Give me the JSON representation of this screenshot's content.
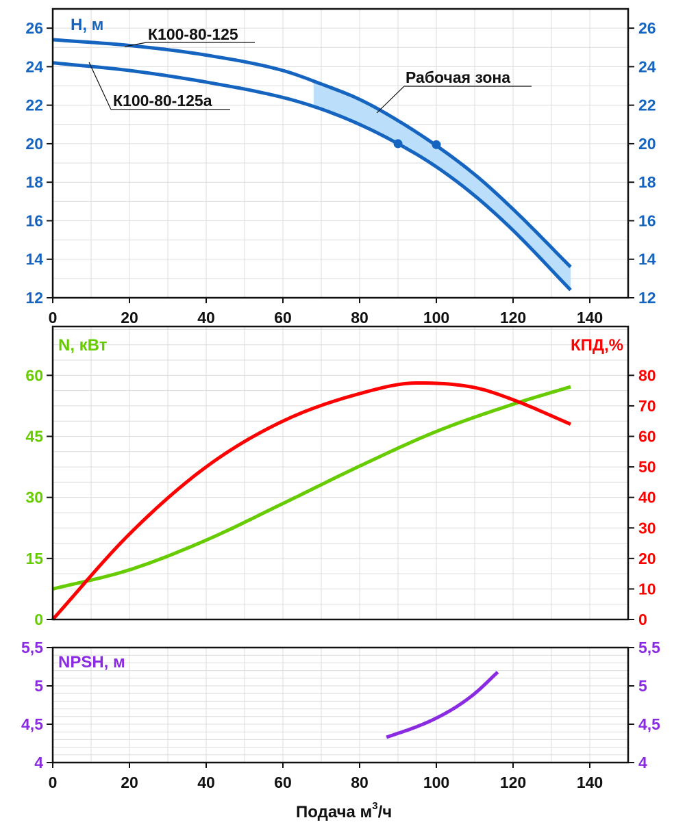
{
  "chart_data": [
    {
      "type": "line",
      "panel": "head",
      "ylabel": "H, м",
      "xlim": [
        0,
        150
      ],
      "ylim": [
        12,
        27
      ],
      "x_ticks": [
        0,
        20,
        40,
        60,
        80,
        100,
        120,
        140
      ],
      "y_ticks": [
        12,
        14,
        16,
        18,
        20,
        22,
        24,
        26
      ],
      "grid": true,
      "axis_color": "#1565c0",
      "series": [
        {
          "name": "К100-80-125",
          "color": "#1565c0",
          "x": [
            0,
            20,
            40,
            60,
            70,
            80,
            90,
            100,
            110,
            120,
            135
          ],
          "y": [
            25.4,
            25.1,
            24.6,
            23.8,
            23.1,
            22.3,
            21.2,
            19.9,
            18.4,
            16.6,
            13.6
          ]
        },
        {
          "name": "К100-80-125а",
          "color": "#1565c0",
          "x": [
            0,
            20,
            40,
            60,
            70,
            80,
            90,
            100,
            110,
            120,
            135
          ],
          "y": [
            24.2,
            23.8,
            23.2,
            22.4,
            21.8,
            21.0,
            20.0,
            18.8,
            17.3,
            15.5,
            12.4
          ]
        }
      ],
      "work_zone": {
        "label": "Рабочая зона",
        "x_range": [
          68,
          135
        ],
        "color": "#bbdefb"
      },
      "points": [
        {
          "series": "К100-80-125",
          "x": 100,
          "y": 19.95
        },
        {
          "series": "К100-80-125а",
          "x": 90,
          "y": 20.0
        }
      ],
      "annotations": [
        "К100-80-125",
        "К100-80-125а",
        "Рабочая зона"
      ]
    },
    {
      "type": "line",
      "panel": "power_efficiency",
      "xlim": [
        0,
        150
      ],
      "y_left": {
        "label": "N, кВт",
        "range": [
          0,
          72
        ],
        "ticks": [
          0,
          15,
          30,
          45,
          60
        ],
        "color": "#66cc00"
      },
      "y_right": {
        "label": "КПД,%",
        "range": [
          0,
          96
        ],
        "ticks": [
          0,
          10,
          20,
          30,
          40,
          50,
          60,
          70,
          80
        ],
        "color": "#ff0000"
      },
      "grid": true,
      "series": [
        {
          "name": "N",
          "axis": "left",
          "color": "#66cc00",
          "x": [
            0,
            20,
            40,
            60,
            80,
            100,
            120,
            135
          ],
          "y": [
            7.5,
            12.2,
            19.5,
            28.5,
            37.7,
            46.2,
            52.9,
            57.2
          ]
        },
        {
          "name": "КПД",
          "axis": "right",
          "color": "#ff0000",
          "x": [
            0,
            20,
            40,
            60,
            80,
            95,
            110,
            120,
            135
          ],
          "y": [
            0,
            28,
            50,
            65,
            74,
            77.5,
            76,
            72,
            64
          ]
        }
      ]
    },
    {
      "type": "line",
      "panel": "npsh",
      "ylabel": "NPSH, м",
      "xlabel": "Подача м",
      "xlabel_sup": "3",
      "xlabel_suffix": "/ч",
      "xlim": [
        0,
        150
      ],
      "ylim": [
        4,
        5.5
      ],
      "x_ticks": [
        0,
        20,
        40,
        60,
        80,
        100,
        120,
        140
      ],
      "y_ticks": [
        4,
        4.5,
        5,
        5.5
      ],
      "y_tick_labels": [
        "4",
        "4,5",
        "5",
        "5,5"
      ],
      "grid": true,
      "axis_color": "#8a2be2",
      "series": [
        {
          "name": "NPSH",
          "color": "#8a2be2",
          "x": [
            87,
            95,
            100,
            105,
            110,
            116
          ],
          "y": [
            4.33,
            4.47,
            4.58,
            4.72,
            4.9,
            5.18
          ]
        }
      ]
    }
  ]
}
